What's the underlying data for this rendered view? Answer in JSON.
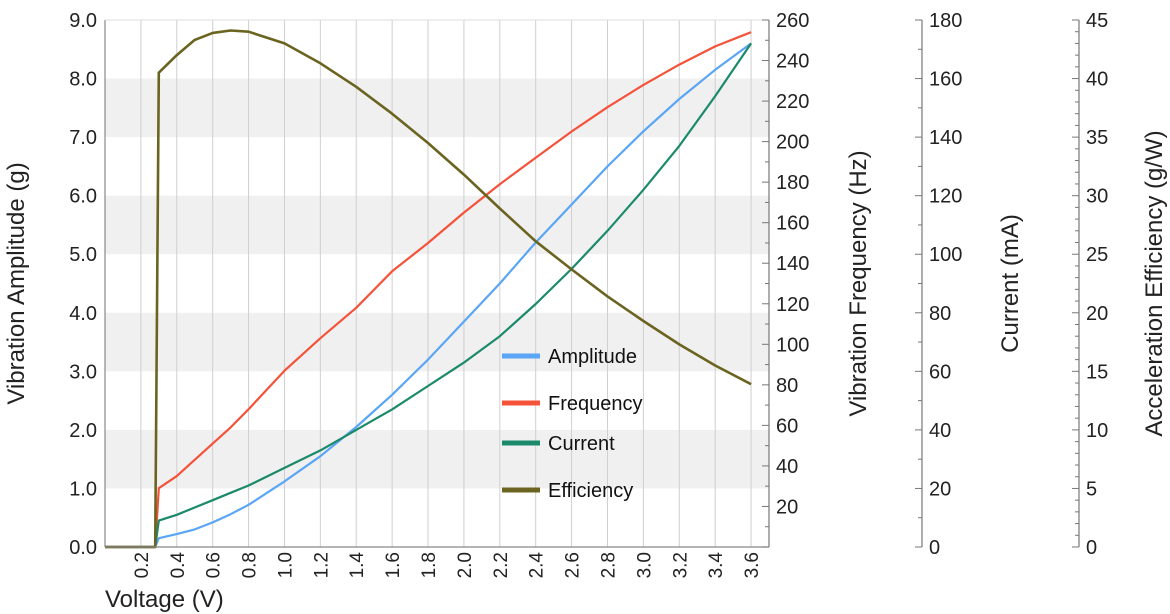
{
  "chart_data": {
    "type": "line",
    "xlabel": "Voltage (V)",
    "xlim": [
      0,
      3.7
    ],
    "xticks": [
      "0.2",
      "0.4",
      "0.6",
      "0.8",
      "1.0",
      "1.2",
      "1.4",
      "1.6",
      "1.8",
      "2.0",
      "2.2",
      "2.4",
      "2.6",
      "2.8",
      "3.0",
      "3.2",
      "3.4",
      "3.6"
    ],
    "grid": "vertical lines at x ticks, alternating horizontal bands",
    "legend_position": "lower-center",
    "axes": [
      {
        "id": "amp",
        "label": "Vibration Amplitude (g)",
        "range": [
          0,
          9
        ],
        "ticks": [
          "0.0",
          "1.0",
          "2.0",
          "3.0",
          "4.0",
          "5.0",
          "6.0",
          "7.0",
          "8.0",
          "9.0"
        ],
        "tick_values": [
          0,
          1,
          2,
          3,
          4,
          5,
          6,
          7,
          8,
          9
        ],
        "minor_step": null,
        "side": "left"
      },
      {
        "id": "freq",
        "label": "Vibration Frequency (Hz)",
        "range": [
          0,
          260
        ],
        "ticks": [
          "20",
          "40",
          "60",
          "80",
          "100",
          "120",
          "140",
          "160",
          "180",
          "200",
          "220",
          "240",
          "260"
        ],
        "tick_values": [
          20,
          40,
          60,
          80,
          100,
          120,
          140,
          160,
          180,
          200,
          220,
          240,
          260
        ],
        "minor_step": 10,
        "side": "right"
      },
      {
        "id": "cur",
        "label": "Current (mA)",
        "range": [
          0,
          180
        ],
        "ticks": [
          "0",
          "20",
          "40",
          "60",
          "80",
          "100",
          "120",
          "140",
          "160",
          "180"
        ],
        "tick_values": [
          0,
          20,
          40,
          60,
          80,
          100,
          120,
          140,
          160,
          180
        ],
        "minor_step": 10,
        "side": "right"
      },
      {
        "id": "eff",
        "label": "Acceleration Efficiency (g/W)",
        "range": [
          0,
          45
        ],
        "ticks": [
          "0",
          "5",
          "10",
          "15",
          "20",
          "25",
          "30",
          "35",
          "40",
          "45"
        ],
        "tick_values": [
          0,
          5,
          10,
          15,
          20,
          25,
          30,
          35,
          40,
          45
        ],
        "minor_step": 1,
        "side": "right"
      }
    ],
    "x": [
      0,
      0.28,
      0.3,
      0.4,
      0.5,
      0.6,
      0.7,
      0.8,
      1.0,
      1.2,
      1.4,
      1.6,
      1.8,
      2.0,
      2.2,
      2.4,
      2.6,
      2.8,
      3.0,
      3.2,
      3.4,
      3.6
    ],
    "series": [
      {
        "name": "Amplitude",
        "axis": "amp",
        "color": "#5aa5f5",
        "values": [
          0,
          0,
          0.15,
          0.22,
          0.3,
          0.42,
          0.56,
          0.72,
          1.12,
          1.55,
          2.05,
          2.6,
          3.2,
          3.85,
          4.5,
          5.2,
          5.85,
          6.5,
          7.1,
          7.65,
          8.15,
          8.6
        ]
      },
      {
        "name": "Frequency",
        "axis": "freq",
        "color": "#f4533a",
        "values": [
          0,
          0,
          29,
          35,
          43,
          51,
          59,
          68,
          87,
          103,
          118,
          136,
          150,
          165,
          179,
          192,
          205,
          217,
          228,
          238,
          247,
          254
        ]
      },
      {
        "name": "Current",
        "axis": "cur",
        "color": "#1b8a6b",
        "values": [
          0,
          0,
          9,
          11,
          13.5,
          16,
          18.5,
          21,
          27,
          33,
          40,
          47,
          55,
          63,
          72,
          83,
          95,
          108,
          122,
          137,
          154,
          172
        ]
      },
      {
        "name": "Efficiency",
        "axis": "eff",
        "color": "#6b6420",
        "values": [
          0,
          0,
          40.5,
          42,
          43.3,
          43.9,
          44.1,
          44.0,
          43.0,
          41.3,
          39.3,
          37.0,
          34.5,
          31.8,
          28.9,
          26.1,
          23.7,
          21.4,
          19.3,
          17.3,
          15.5,
          13.9
        ]
      }
    ]
  }
}
